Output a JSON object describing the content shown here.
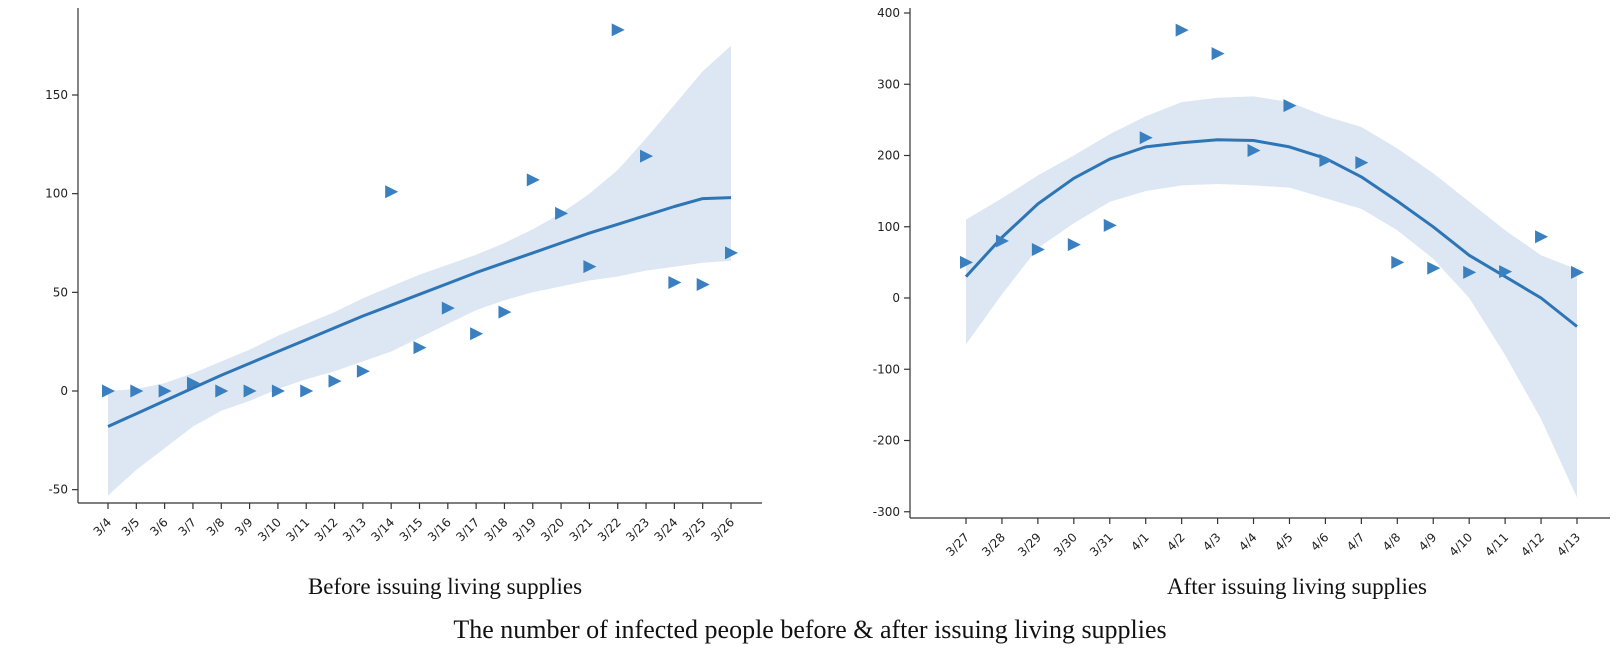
{
  "figure_title": "The number of infected people before & after issuing living supplies",
  "colors": {
    "marker": "#3A7FBF",
    "line": "#2E75B6",
    "band": "#DCE7F3",
    "axis": "#333333"
  },
  "chart_data": [
    {
      "type": "scatter",
      "marker": "triangle-right",
      "fit": "quadratic-regression-with-confidence-band",
      "xlabel": "Before issuing living supplies",
      "ylabel": "",
      "categories": [
        "3/4",
        "3/5",
        "3/6",
        "3/7",
        "3/8",
        "3/9",
        "3/10",
        "3/11",
        "3/12",
        "3/13",
        "3/14",
        "3/15",
        "3/16",
        "3/17",
        "3/18",
        "3/19",
        "3/20",
        "3/21",
        "3/22",
        "3/23",
        "3/24",
        "3/25",
        "3/26"
      ],
      "values": [
        0,
        0,
        0,
        4,
        0,
        0,
        0,
        0,
        5,
        10,
        101,
        22,
        42,
        29,
        40,
        107,
        90,
        63,
        183,
        119,
        55,
        54,
        70
      ],
      "fit_line": [
        -18,
        -11.5,
        -5,
        1.5,
        8,
        14,
        20,
        26,
        32,
        38,
        43.5,
        49,
        54.5,
        60,
        65,
        70,
        75,
        80,
        84.5,
        89,
        93.5,
        97.5,
        98
      ],
      "band_upper": [
        0,
        1,
        4,
        9,
        15,
        21,
        28,
        34,
        40,
        47,
        53,
        59,
        64,
        69,
        75,
        82,
        90,
        100,
        112,
        128,
        145,
        162,
        175
      ],
      "band_lower": [
        -53,
        -40,
        -29,
        -18,
        -10,
        -5,
        1,
        6,
        10,
        15,
        20,
        27,
        34,
        41,
        46,
        50,
        53,
        56,
        58,
        61,
        63,
        65,
        66
      ],
      "yticks": [
        -50,
        0,
        50,
        100,
        150
      ],
      "ylim": [
        -65,
        195
      ]
    },
    {
      "type": "scatter",
      "marker": "triangle-right",
      "fit": "quadratic-regression-with-confidence-band",
      "xlabel": "After issuing living supplies",
      "ylabel": "",
      "categories": [
        "3/27",
        "3/28",
        "3/29",
        "3/30",
        "3/31",
        "4/1",
        "4/2",
        "4/3",
        "4/4",
        "4/5",
        "4/6",
        "4/7",
        "4/8",
        "4/9",
        "4/10",
        "4/11",
        "4/12",
        "4/13"
      ],
      "values": [
        50,
        80,
        68,
        75,
        102,
        225,
        376,
        343,
        207,
        270,
        193,
        190,
        50,
        42,
        36,
        37,
        86,
        36
      ],
      "fit_line": [
        30,
        85,
        132,
        168,
        195,
        212,
        218,
        222,
        221,
        212,
        196,
        170,
        136,
        100,
        60,
        30,
        0,
        -40
      ],
      "band_upper": [
        110,
        140,
        172,
        200,
        230,
        255,
        275,
        281,
        283,
        275,
        255,
        240,
        210,
        175,
        135,
        95,
        60,
        40
      ],
      "band_lower": [
        -65,
        5,
        70,
        105,
        135,
        150,
        158,
        160,
        158,
        155,
        140,
        125,
        95,
        55,
        0,
        -80,
        -170,
        -280
      ],
      "yticks": [
        -300,
        -200,
        -100,
        0,
        100,
        200,
        300,
        400
      ],
      "ylim": [
        -310,
        410
      ]
    }
  ]
}
